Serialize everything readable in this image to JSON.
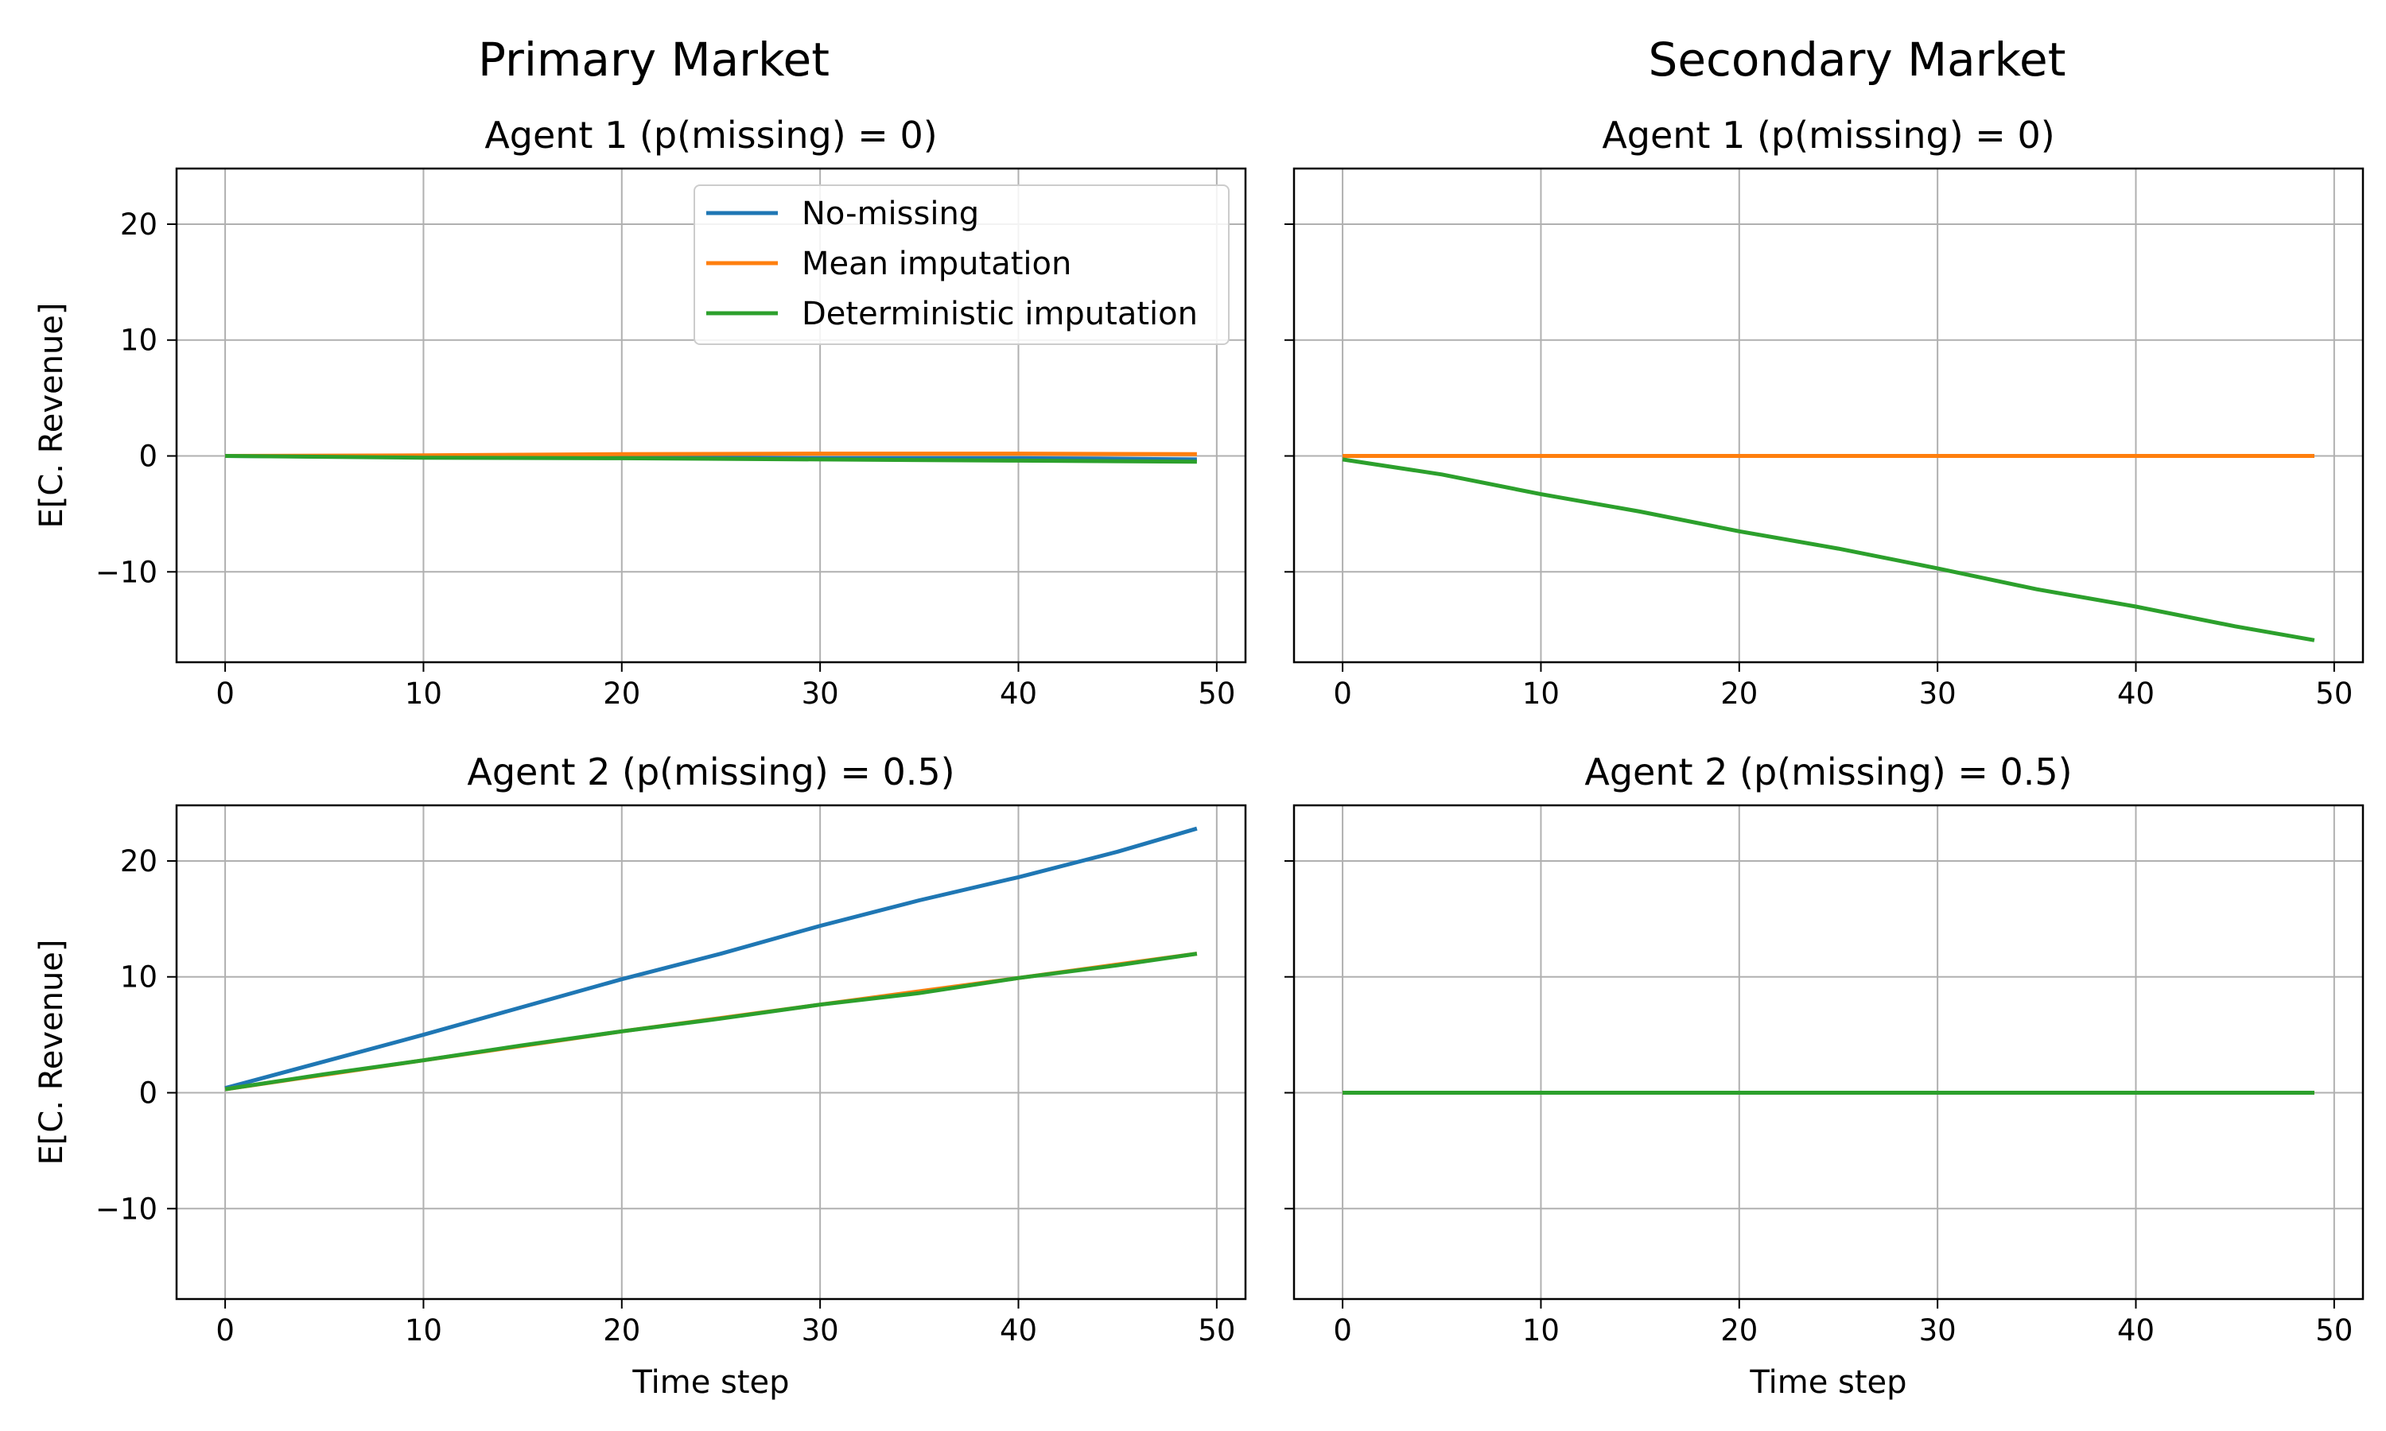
{
  "figure": {
    "col_titles": [
      "Primary Market",
      "Secondary Market"
    ]
  },
  "colors": {
    "no_missing": "#1f77b4",
    "mean_imputation": "#ff7f0e",
    "deterministic_imputation": "#2ca02c"
  },
  "legend": {
    "placement": "top-right of first panel",
    "entries": [
      "No-missing",
      "Mean imputation",
      "Deterministic imputation"
    ]
  },
  "chart_data": [
    {
      "type": "line",
      "title": "Agent 1 (p(missing) = 0)",
      "xlabel": "",
      "ylabel": "E[C. Revenue]",
      "xlim": [
        -2.45,
        51.45
      ],
      "ylim": [
        -17.8,
        24.8
      ],
      "xticks": [
        "0",
        "10",
        "20",
        "30",
        "40",
        "50"
      ],
      "yticks": [
        "20",
        "10",
        "0",
        "−10"
      ],
      "grid": true,
      "series": [
        {
          "name": "No-missing",
          "x_range": [
            0,
            49
          ],
          "points": [
            [
              0,
              0
            ],
            [
              10,
              -0.1
            ],
            [
              20,
              -0.1
            ],
            [
              30,
              -0.2
            ],
            [
              40,
              -0.2
            ],
            [
              49,
              -0.3
            ]
          ]
        },
        {
          "name": "Mean imputation",
          "x_range": [
            0,
            49
          ],
          "points": [
            [
              0,
              0
            ],
            [
              10,
              0.05
            ],
            [
              20,
              0.15
            ],
            [
              30,
              0.2
            ],
            [
              40,
              0.2
            ],
            [
              49,
              0.15
            ]
          ]
        },
        {
          "name": "Deterministic imputation",
          "x_range": [
            0,
            49
          ],
          "points": [
            [
              0,
              0
            ],
            [
              10,
              -0.15
            ],
            [
              20,
              -0.2
            ],
            [
              30,
              -0.3
            ],
            [
              40,
              -0.4
            ],
            [
              49,
              -0.5
            ]
          ]
        }
      ]
    },
    {
      "type": "line",
      "title": "Agent 1 (p(missing) = 0)",
      "xlabel": "",
      "ylabel": "",
      "xlim": [
        -2.45,
        51.45
      ],
      "ylim": [
        -17.8,
        24.8
      ],
      "xticks": [
        "0",
        "10",
        "20",
        "30",
        "40",
        "50"
      ],
      "yticks": [],
      "grid": true,
      "series": [
        {
          "name": "No-missing",
          "x_range": [
            0,
            49
          ],
          "points": [
            [
              0,
              0
            ],
            [
              49,
              0
            ]
          ]
        },
        {
          "name": "Mean imputation",
          "x_range": [
            0,
            49
          ],
          "points": [
            [
              0,
              0
            ],
            [
              49,
              0
            ]
          ]
        },
        {
          "name": "Deterministic imputation",
          "x_range": [
            0,
            49
          ],
          "points": [
            [
              0,
              -0.3
            ],
            [
              5,
              -1.6
            ],
            [
              10,
              -3.3
            ],
            [
              15,
              -4.8
            ],
            [
              20,
              -6.5
            ],
            [
              25,
              -8.0
            ],
            [
              30,
              -9.7
            ],
            [
              35,
              -11.5
            ],
            [
              40,
              -13.0
            ],
            [
              45,
              -14.7
            ],
            [
              49,
              -15.9
            ]
          ]
        }
      ]
    },
    {
      "type": "line",
      "title": "Agent 2 (p(missing) = 0.5)",
      "xlabel": "Time step",
      "ylabel": "E[C. Revenue]",
      "xlim": [
        -2.45,
        51.45
      ],
      "ylim": [
        -17.8,
        24.8
      ],
      "xticks": [
        "0",
        "10",
        "20",
        "30",
        "40",
        "50"
      ],
      "yticks": [
        "20",
        "10",
        "0",
        "−10"
      ],
      "grid": true,
      "series": [
        {
          "name": "No-missing",
          "x_range": [
            0,
            49
          ],
          "points": [
            [
              0,
              0.4
            ],
            [
              5,
              2.7
            ],
            [
              10,
              5.0
            ],
            [
              15,
              7.4
            ],
            [
              20,
              9.8
            ],
            [
              25,
              12.0
            ],
            [
              30,
              14.4
            ],
            [
              35,
              16.6
            ],
            [
              40,
              18.6
            ],
            [
              45,
              20.8
            ],
            [
              49,
              22.8
            ]
          ]
        },
        {
          "name": "Mean imputation",
          "x_range": [
            0,
            49
          ],
          "points": [
            [
              0,
              0.3
            ],
            [
              10,
              2.8
            ],
            [
              20,
              5.3
            ],
            [
              30,
              7.6
            ],
            [
              40,
              9.9
            ],
            [
              49,
              12.0
            ]
          ]
        },
        {
          "name": "Deterministic imputation",
          "x_range": [
            0,
            49
          ],
          "points": [
            [
              0,
              0.3
            ],
            [
              5,
              1.6
            ],
            [
              10,
              2.8
            ],
            [
              15,
              4.1
            ],
            [
              20,
              5.3
            ],
            [
              25,
              6.4
            ],
            [
              30,
              7.6
            ],
            [
              35,
              8.6
            ],
            [
              40,
              9.9
            ],
            [
              45,
              11.0
            ],
            [
              49,
              12.0
            ]
          ]
        }
      ]
    },
    {
      "type": "line",
      "title": "Agent 2 (p(missing) = 0.5)",
      "xlabel": "Time step",
      "ylabel": "",
      "xlim": [
        -2.45,
        51.45
      ],
      "ylim": [
        -17.8,
        24.8
      ],
      "xticks": [
        "0",
        "10",
        "20",
        "30",
        "40",
        "50"
      ],
      "yticks": [],
      "grid": true,
      "series": [
        {
          "name": "No-missing",
          "x_range": [
            0,
            49
          ],
          "points": [
            [
              0,
              0
            ],
            [
              49,
              0
            ]
          ]
        },
        {
          "name": "Mean imputation",
          "x_range": [
            0,
            49
          ],
          "points": [
            [
              0,
              0
            ],
            [
              49,
              0
            ]
          ]
        },
        {
          "name": "Deterministic imputation",
          "x_range": [
            0,
            49
          ],
          "points": [
            [
              0,
              0
            ],
            [
              49,
              0
            ]
          ]
        }
      ]
    }
  ]
}
